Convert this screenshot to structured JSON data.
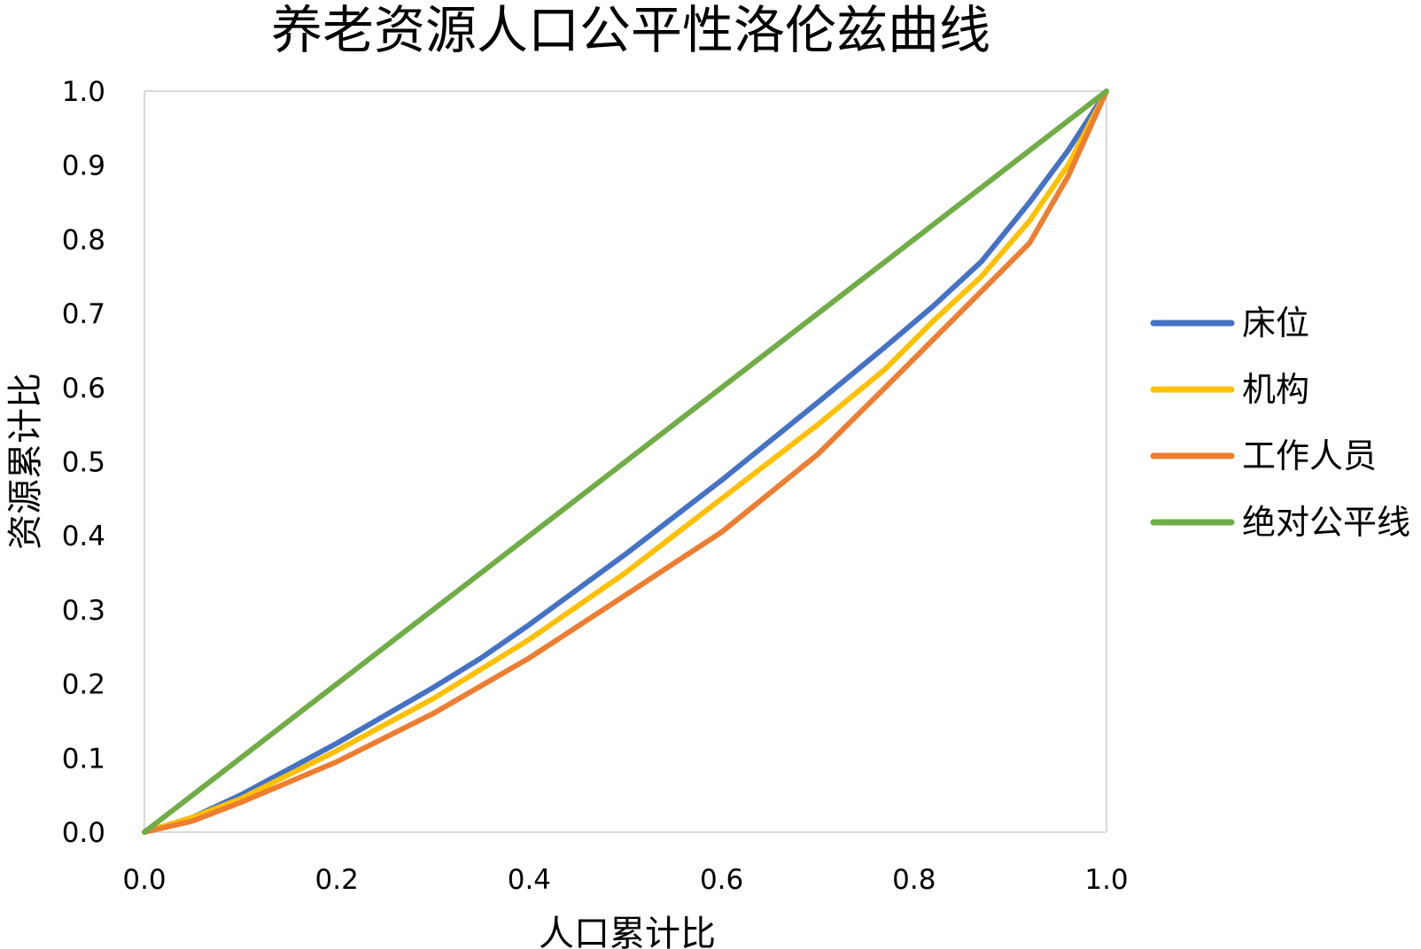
{
  "chart_data": {
    "type": "line",
    "title": "养老资源人口公平性洛伦兹曲线",
    "xlabel": "人口累计比",
    "ylabel": "资源累计比",
    "xlim": [
      0,
      1
    ],
    "ylim": [
      0,
      1
    ],
    "xticks": [
      "0.0",
      "0.2",
      "0.4",
      "0.6",
      "0.8",
      "1.0"
    ],
    "yticks": [
      "0.0",
      "0.1",
      "0.2",
      "0.3",
      "0.4",
      "0.5",
      "0.6",
      "0.7",
      "0.8",
      "0.9",
      "1.0"
    ],
    "grid": false,
    "legend": "right",
    "series": [
      {
        "name": "床位",
        "color": "#4472C4",
        "x": [
          0,
          0.05,
          0.1,
          0.2,
          0.3,
          0.35,
          0.4,
          0.5,
          0.6,
          0.7,
          0.77,
          0.82,
          0.87,
          0.92,
          0.96,
          1.0
        ],
        "y": [
          0,
          0.02,
          0.05,
          0.12,
          0.195,
          0.235,
          0.28,
          0.375,
          0.475,
          0.58,
          0.655,
          0.71,
          0.77,
          0.85,
          0.92,
          1.0
        ]
      },
      {
        "name": "机构",
        "color": "#FFC000",
        "x": [
          0,
          0.05,
          0.1,
          0.2,
          0.3,
          0.4,
          0.5,
          0.6,
          0.7,
          0.77,
          0.82,
          0.87,
          0.92,
          0.96,
          1.0
        ],
        "y": [
          0,
          0.02,
          0.045,
          0.11,
          0.18,
          0.26,
          0.35,
          0.45,
          0.55,
          0.625,
          0.69,
          0.75,
          0.825,
          0.9,
          1.0
        ]
      },
      {
        "name": "工作人员",
        "color": "#ED7D31",
        "x": [
          0,
          0.05,
          0.1,
          0.2,
          0.3,
          0.4,
          0.5,
          0.6,
          0.7,
          0.77,
          0.82,
          0.87,
          0.92,
          0.96,
          1.0
        ],
        "y": [
          0,
          0.015,
          0.04,
          0.095,
          0.16,
          0.235,
          0.32,
          0.405,
          0.51,
          0.6,
          0.665,
          0.73,
          0.795,
          0.885,
          1.0
        ]
      },
      {
        "name": "绝对公平线",
        "color": "#70AD47",
        "x": [
          0,
          1
        ],
        "y": [
          0,
          1
        ]
      }
    ]
  }
}
